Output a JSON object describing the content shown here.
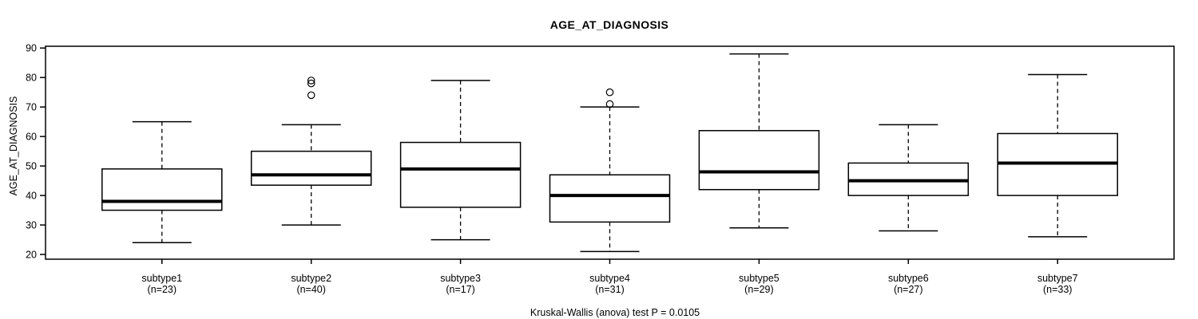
{
  "title": "AGE_AT_DIAGNOSIS",
  "y_axis": {
    "label": "AGE_AT_DIAGNOSIS",
    "tick_labels": [
      "20",
      "30",
      "40",
      "50",
      "60",
      "70",
      "80",
      "90"
    ]
  },
  "caption": "Kruskal-Wallis (anova) test P = 0.0105",
  "chart_data": {
    "type": "boxplot",
    "title": "AGE_AT_DIAGNOSIS",
    "xlabel": "",
    "ylabel": "AGE_AT_DIAGNOSIS",
    "ylim": [
      18.4,
      90.6
    ],
    "yticks": [
      20,
      30,
      40,
      50,
      60,
      70,
      80,
      90
    ],
    "grid": false,
    "legend": "none",
    "footnote": "Kruskal-Wallis (anova) test P = 0.0105",
    "categories": [
      "subtype1",
      "subtype2",
      "subtype3",
      "subtype4",
      "subtype5",
      "subtype6",
      "subtype7"
    ],
    "groups": [
      {
        "label": "subtype1",
        "n": 23,
        "n_label": "(n=23)",
        "whisker_low": 24,
        "q1": 35,
        "median": 38,
        "q3": 49,
        "whisker_high": 65,
        "outliers": []
      },
      {
        "label": "subtype2",
        "n": 40,
        "n_label": "(n=40)",
        "whisker_low": 30,
        "q1": 43.5,
        "median": 47,
        "q3": 55,
        "whisker_high": 64,
        "outliers": [
          79,
          78,
          74
        ]
      },
      {
        "label": "subtype3",
        "n": 17,
        "n_label": "(n=17)",
        "whisker_low": 25,
        "q1": 36,
        "median": 49,
        "q3": 58,
        "whisker_high": 79,
        "outliers": []
      },
      {
        "label": "subtype4",
        "n": 31,
        "n_label": "(n=31)",
        "whisker_low": 21,
        "q1": 31,
        "median": 40,
        "q3": 47,
        "whisker_high": 70,
        "outliers": [
          75,
          71
        ]
      },
      {
        "label": "subtype5",
        "n": 29,
        "n_label": "(n=29)",
        "whisker_low": 29,
        "q1": 42,
        "median": 48,
        "q3": 62,
        "whisker_high": 88,
        "outliers": []
      },
      {
        "label": "subtype6",
        "n": 27,
        "n_label": "(n=27)",
        "whisker_low": 28,
        "q1": 40,
        "median": 45,
        "q3": 51,
        "whisker_high": 64,
        "outliers": []
      },
      {
        "label": "subtype7",
        "n": 33,
        "n_label": "(n=33)",
        "whisker_low": 26,
        "q1": 40,
        "median": 51,
        "q3": 61,
        "whisker_high": 81,
        "outliers": []
      }
    ],
    "colors": {
      "stroke": "#000000",
      "box_fill": "#ffffff",
      "background": "#ffffff"
    }
  }
}
